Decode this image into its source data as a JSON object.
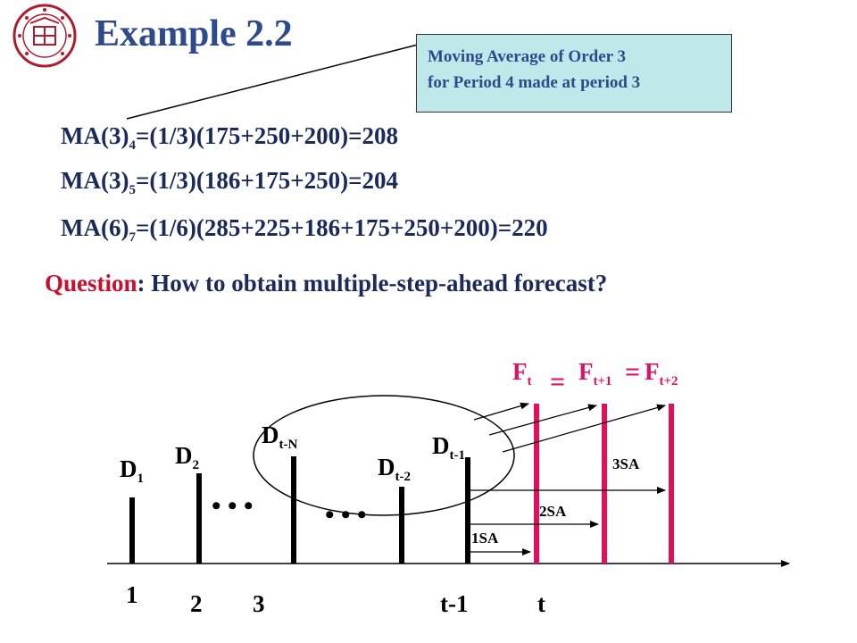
{
  "title": "Example 2.2",
  "callout": {
    "line1": "Moving Average of  Order 3",
    "line2": "for Period 4 made at period 3"
  },
  "equations": [
    {
      "lhs": "MA(3)",
      "sub": "4",
      "rhs": "=(1/3)(175+250+200)=208"
    },
    {
      "lhs": "MA(3)",
      "sub": "5",
      "rhs": "=(1/3)(186+175+250)=204"
    },
    {
      "lhs": "MA(6)",
      "sub": "7",
      "rhs": "=(1/6)(285+225+186+175+250+200)=220"
    }
  ],
  "question": {
    "label": "Question",
    "text": ": How to obtain  multiple-step-ahead  forecast?"
  },
  "diagram": {
    "demand_labels": [
      {
        "base": "D",
        "sub": "1"
      },
      {
        "base": "D",
        "sub": "2"
      },
      {
        "base": "D",
        "sub": "t-N"
      },
      {
        "base": "D",
        "sub": "t-2"
      },
      {
        "base": "D",
        "sub": "t-1"
      }
    ],
    "forecast_labels": [
      {
        "base": "F",
        "sub": "t"
      },
      {
        "base": "F",
        "sub": "t+1"
      },
      {
        "base": "F",
        "sub": "t+2"
      }
    ],
    "equals": [
      "=",
      "="
    ],
    "step_labels": [
      "1SA",
      "2SA",
      "3SA"
    ],
    "axis_labels": [
      "1",
      "2",
      "3",
      "t-1",
      "t"
    ],
    "ellipsis": [
      "• • •",
      "• • •"
    ],
    "colors": {
      "forecast": "#e0105f",
      "text": "#1a2a5a",
      "accent": "#c8102e"
    }
  }
}
